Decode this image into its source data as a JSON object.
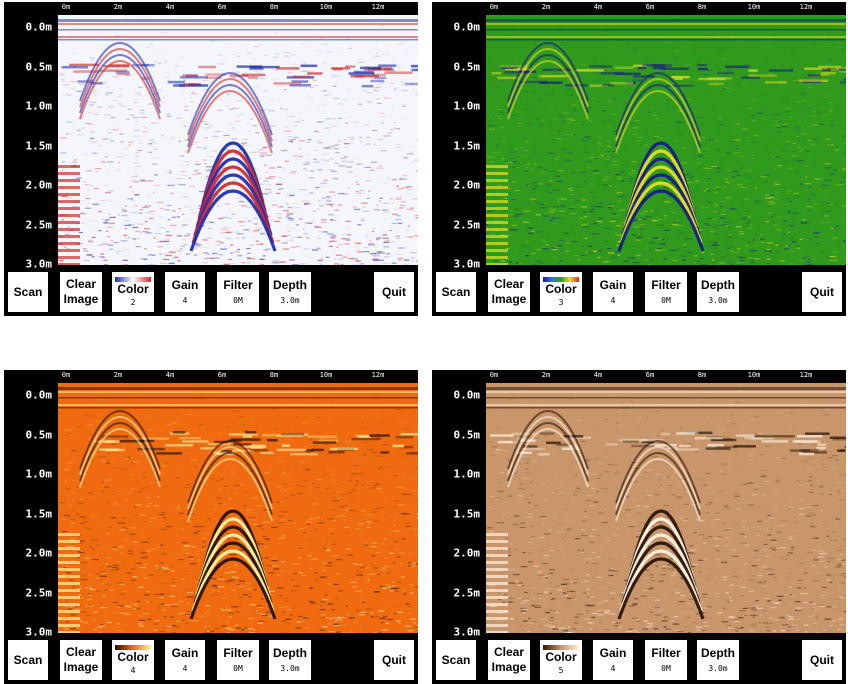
{
  "axes": {
    "x_ticks": [
      "0m",
      "2m",
      "4m",
      "6m",
      "8m",
      "10m",
      "12m"
    ],
    "y_ticks": [
      "0.0m",
      "0.5m",
      "1.0m",
      "1.5m",
      "2.0m",
      "2.5m",
      "3.0m"
    ]
  },
  "toolbar": {
    "scan_label": "Scan",
    "clear_label_line1": "Clear",
    "clear_label_line2": "Image",
    "color_label": "Color",
    "gain_label": "Gain",
    "filter_label": "Filter",
    "depth_label": "Depth",
    "quit_label": "Quit"
  },
  "panels": [
    {
      "color_value": "2",
      "gain_value": "4",
      "filter_value": "0M",
      "depth_value": "3.0m",
      "palette": "blue-white-red",
      "colors": {
        "bg": "#f4f6fb",
        "pos": "#d42a2a",
        "neg": "#1f2fb0",
        "mid": "#ffffff"
      }
    },
    {
      "color_value": "3",
      "gain_value": "4",
      "filter_value": "0M",
      "depth_value": "3.0m",
      "palette": "rainbow-green",
      "colors": {
        "bg": "#2f9a1c",
        "pos": "#e8e020",
        "neg": "#1a1a8a",
        "mid": "#2f9a1c"
      }
    },
    {
      "color_value": "4",
      "gain_value": "4",
      "filter_value": "0M",
      "depth_value": "3.0m",
      "palette": "orange-yellow",
      "colors": {
        "bg": "#f06a10",
        "pos": "#fff4a0",
        "neg": "#2a1200",
        "mid": "#f06a10"
      }
    },
    {
      "color_value": "5",
      "gain_value": "4",
      "filter_value": "0M",
      "depth_value": "3.0m",
      "palette": "copper",
      "colors": {
        "bg": "#c9956a",
        "pos": "#fff2e0",
        "neg": "#2a1608",
        "mid": "#c9956a"
      }
    }
  ]
}
